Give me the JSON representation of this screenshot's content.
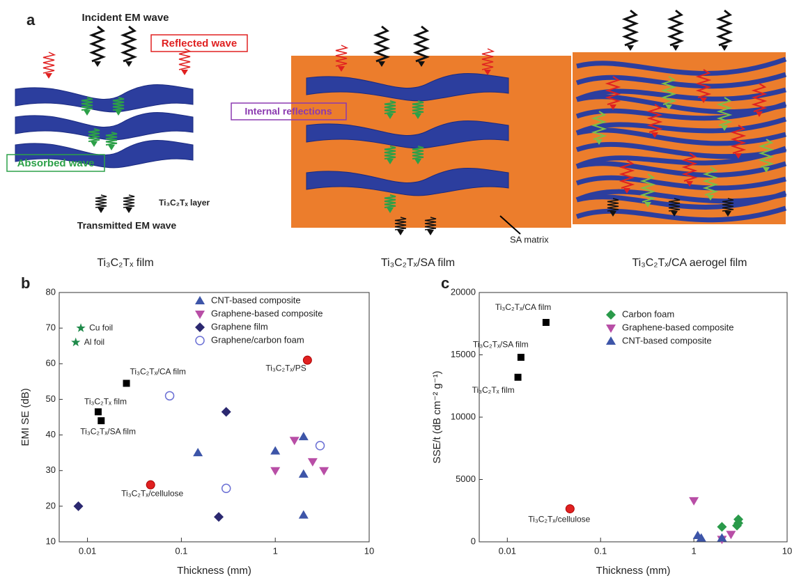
{
  "figure_a": {
    "panel": "a",
    "incident": "Incident EM wave",
    "reflected": "Reflected wave",
    "absorbed": "Absorbed wave",
    "layer": "Ti₃C₂Tₓ layer",
    "transmitted": "Transmitted EM wave",
    "internal": "Internal reflections",
    "matrix": "SA matrix",
    "captions": [
      "Ti₃C₂Tₓ film",
      "Ti₃C₂Tₓ/SA film",
      "Ti₃C₂Tₓ/CA  aerogel film"
    ]
  },
  "chart_data": [
    {
      "type": "scatter",
      "panel": "b",
      "xlabel": "Thickness (mm)",
      "ylabel": "EMI SE (dB)",
      "xscale": "log",
      "xlim": [
        0.005,
        10
      ],
      "ylim": [
        10,
        80
      ],
      "xticks": [
        0.01,
        0.1,
        1,
        10
      ],
      "yticks": [
        10,
        20,
        30,
        40,
        50,
        60,
        70,
        80
      ],
      "legend": "upper right",
      "series": [
        {
          "name": "CNT-based composite",
          "color": "#3d55a8",
          "marker": "triangle",
          "x": [
            0.15,
            1,
            2,
            2,
            2
          ],
          "values": [
            35,
            35.5,
            39.5,
            29,
            17.5
          ]
        },
        {
          "name": "Graphene-based composite",
          "color": "#b84ea6",
          "marker": "triangle-down",
          "x": [
            1,
            1.6,
            2.5,
            3.3
          ],
          "values": [
            30,
            38.5,
            32.5,
            30
          ]
        },
        {
          "name": "Graphene film",
          "color": "#2b2870",
          "marker": "diamond",
          "x": [
            0.008,
            0.3,
            0.25
          ],
          "values": [
            20,
            46.5,
            17
          ]
        },
        {
          "name": "Graphene/carbon foam",
          "color": "#6a6fd4",
          "marker": "circle-open",
          "x": [
            0.075,
            0.3,
            3
          ],
          "values": [
            51,
            25,
            37
          ]
        }
      ],
      "annotated_points": [
        {
          "label": "Cu foil",
          "x": 0.0085,
          "y": 70,
          "color": "#1f8a4a",
          "marker": "star"
        },
        {
          "label": "Al foil",
          "x": 0.0075,
          "y": 66,
          "color": "#1f8a4a",
          "marker": "star"
        },
        {
          "label": "Ti₃C₂Tₓ/CA film",
          "x": 0.026,
          "y": 54.5,
          "color": "#000000",
          "marker": "square"
        },
        {
          "label": "Ti₃C₂Tₓ film",
          "x": 0.013,
          "y": 46.5,
          "color": "#000000",
          "marker": "square"
        },
        {
          "label": "Ti₃C₂Tₓ/SA film",
          "x": 0.014,
          "y": 44,
          "color": "#000000",
          "marker": "square"
        },
        {
          "label": "Ti₃C₂Tₓ/PS",
          "x": 2.2,
          "y": 61,
          "color": "#e02020",
          "marker": "sphere"
        },
        {
          "label": "Ti₃C₂Tₓ/cellulose",
          "x": 0.047,
          "y": 26,
          "color": "#e02020",
          "marker": "sphere"
        }
      ]
    },
    {
      "type": "scatter",
      "panel": "c",
      "xlabel": "Thickness (mm)",
      "ylabel": "SSE/t (dB cm⁻² g⁻¹)",
      "xscale": "log",
      "xlim": [
        0.005,
        10
      ],
      "ylim": [
        0,
        20000
      ],
      "xticks": [
        0.01,
        0.1,
        1,
        10
      ],
      "yticks": [
        0,
        5000,
        10000,
        15000,
        20000
      ],
      "legend": "upper right",
      "series": [
        {
          "name": "Carbon foam",
          "color": "#2a9a4a",
          "marker": "diamond",
          "x": [
            2,
            3,
            3,
            2.9
          ],
          "values": [
            1200,
            1800,
            1500,
            1300
          ]
        },
        {
          "name": "Graphene-based composite",
          "color": "#b84ea6",
          "marker": "triangle-down",
          "x": [
            1,
            2.5,
            2
          ],
          "values": [
            3300,
            600,
            200
          ]
        },
        {
          "name": "CNT-based composite",
          "color": "#3d55a8",
          "marker": "triangle",
          "x": [
            1.1,
            1.2,
            2
          ],
          "values": [
            500,
            300,
            300
          ]
        }
      ],
      "annotated_points": [
        {
          "label": "Ti₃C₂Tₓ/CA film",
          "x": 0.026,
          "y": 17600,
          "color": "#000000",
          "marker": "square"
        },
        {
          "label": "Ti₃C₂Tₓ/SA film",
          "x": 0.014,
          "y": 14800,
          "color": "#000000",
          "marker": "square"
        },
        {
          "label": "Ti₃C₂Tₓ film",
          "x": 0.013,
          "y": 13200,
          "color": "#000000",
          "marker": "square"
        },
        {
          "label": "Ti₃C₂Tₓ/cellulose",
          "x": 0.047,
          "y": 2650,
          "color": "#e02020",
          "marker": "sphere"
        }
      ]
    }
  ]
}
